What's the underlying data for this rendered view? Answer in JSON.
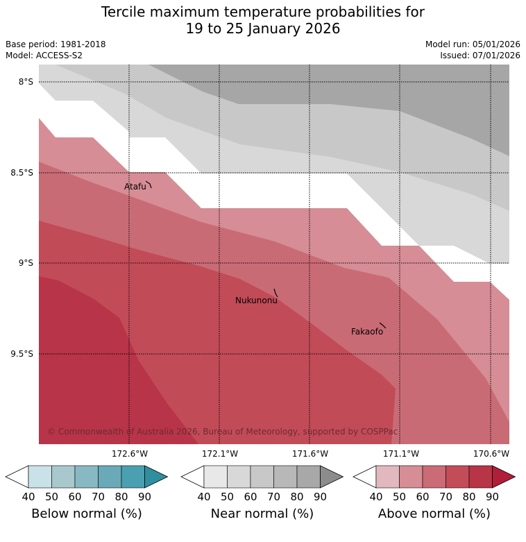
{
  "title": {
    "line1": "Tercile maximum temperature probabilities for",
    "line2": "19 to 25 January 2026"
  },
  "meta": {
    "base_period": "Base period: 1981-2018",
    "model": "Model: ACCESS-S2",
    "model_run": "Model run: 05/01/2026",
    "issued": "Issued: 07/01/2026"
  },
  "axes": {
    "lat_labels": [
      "8°S",
      "8.5°S",
      "9°S",
      "9.5°S"
    ],
    "lon_labels": [
      "172.6°W",
      "172.1°W",
      "171.6°W",
      "171.1°W",
      "170.6°W"
    ]
  },
  "places": [
    {
      "name": "Atafu"
    },
    {
      "name": "Nukunonu"
    },
    {
      "name": "Fakaofo"
    }
  ],
  "copyright": "© Commonwealth of Australia 2026, Bureau of Meteorology, supported by COSPPac",
  "colorbars": [
    {
      "label": "Below normal (%)",
      "ticks": [
        "40",
        "50",
        "60",
        "70",
        "80",
        "90"
      ],
      "colors": [
        "#c8e2e8",
        "#a9c8cd",
        "#88b9c3",
        "#6aaab8",
        "#4aa0b0",
        "#2f8f9e"
      ]
    },
    {
      "label": "Near normal (%)",
      "ticks": [
        "40",
        "50",
        "60",
        "70",
        "80",
        "90"
      ],
      "colors": [
        "#e8e8e8",
        "#d8d8d8",
        "#c8c8c8",
        "#b8b8b8",
        "#a8a8a8",
        "#8c8c8c"
      ]
    },
    {
      "label": "Above normal (%)",
      "ticks": [
        "40",
        "50",
        "60",
        "70",
        "80",
        "90"
      ],
      "colors": [
        "#e2b8bf",
        "#d78d95",
        "#ca6b75",
        "#c24c58",
        "#b83447",
        "#b01e3a"
      ]
    }
  ]
}
